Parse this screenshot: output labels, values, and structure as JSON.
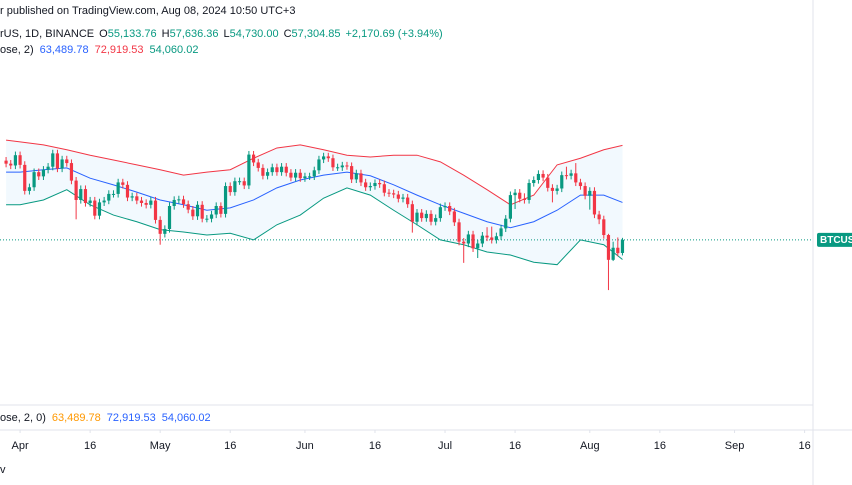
{
  "header": {
    "text": "r published on TradingView.com, Aug 08, 2024 10:50 UTC+3"
  },
  "footer": {
    "text": "v"
  },
  "chart_data": {
    "type": "candlestick",
    "legend": {
      "symbol": "rUS, 1D, BINANCE",
      "ohlc": [
        {
          "label": "O",
          "value": "55,133.76"
        },
        {
          "label": "H",
          "value": "57,636.36"
        },
        {
          "label": "L",
          "value": "54,730.00"
        },
        {
          "label": "C",
          "value": "57,304.85"
        }
      ],
      "change": "+2,170.69 (+3.94%)",
      "value_color": "#089981"
    },
    "indicator_legend": {
      "name": "ose, 2)",
      "values": [
        "63,489.78",
        "72,919.53",
        "54,060.02"
      ],
      "colors": [
        "#2962ff",
        "#f23645",
        "#089981"
      ]
    },
    "lower_indicator_legend": {
      "name": "ose, 2, 0)",
      "values": [
        "63,489.78",
        "72,919.53",
        "54,060.02"
      ],
      "colors": [
        "#ff9800",
        "#2962ff",
        "#2962ff"
      ]
    },
    "price_label": "BTCUSD",
    "up_color": "#089981",
    "down_color": "#f23645",
    "xlim": [
      -4.3,
      169.8
    ],
    "xticks": [
      {
        "value": 0,
        "label": "Apr"
      },
      {
        "value": 15,
        "label": "16"
      },
      {
        "value": 30,
        "label": "May"
      },
      {
        "value": 45,
        "label": "16"
      },
      {
        "value": 61,
        "label": "Jun"
      },
      {
        "value": 76,
        "label": "16"
      },
      {
        "value": 91,
        "label": "Jul"
      },
      {
        "value": 106,
        "label": "16"
      },
      {
        "value": 122,
        "label": "Aug"
      },
      {
        "value": 137,
        "label": "16"
      },
      {
        "value": 153,
        "label": "Sep"
      },
      {
        "value": 168,
        "label": "16"
      }
    ],
    "ylim": [
      30000,
      92000
    ],
    "x": [
      -3,
      -2,
      -1,
      0,
      1,
      2,
      3,
      4,
      5,
      6,
      7,
      8,
      9,
      10,
      11,
      12,
      13,
      14,
      15,
      16,
      17,
      18,
      19,
      20,
      21,
      22,
      23,
      24,
      25,
      26,
      27,
      28,
      29,
      30,
      31,
      32,
      33,
      34,
      35,
      36,
      37,
      38,
      39,
      40,
      41,
      42,
      43,
      44,
      45,
      46,
      47,
      48,
      49,
      50,
      51,
      52,
      53,
      54,
      55,
      56,
      57,
      58,
      59,
      60,
      61,
      62,
      63,
      64,
      65,
      66,
      67,
      68,
      69,
      70,
      71,
      72,
      73,
      74,
      75,
      76,
      77,
      78,
      79,
      80,
      81,
      82,
      83,
      84,
      85,
      86,
      87,
      88,
      89,
      90,
      91,
      92,
      93,
      94,
      95,
      96,
      97,
      98,
      99,
      100,
      101,
      102,
      103,
      104,
      105,
      106,
      107,
      108,
      109,
      110,
      111,
      112,
      113,
      114,
      115,
      116,
      117,
      118,
      119,
      120,
      121,
      122,
      123,
      124,
      125,
      126,
      127,
      128,
      129
    ],
    "open": [
      70400,
      69900,
      69600,
      71300,
      69700,
      65400,
      66000,
      68500,
      67800,
      68900,
      69400,
      71600,
      69100,
      70600,
      70000,
      67100,
      63900,
      65700,
      63400,
      63800,
      61300,
      63500,
      63800,
      64900,
      64900,
      66800,
      66400,
      64300,
      64500,
      63800,
      63400,
      63100,
      63800,
      60600,
      58300,
      59100,
      62900,
      63900,
      64000,
      63200,
      62300,
      61200,
      63100,
      60800,
      60800,
      61500,
      62900,
      61600,
      66200,
      65200,
      67000,
      67000,
      66300,
      71400,
      70100,
      69200,
      67900,
      68500,
      69300,
      68500,
      69400,
      68400,
      67600,
      68400,
      67500,
      67800,
      67800,
      68800,
      70600,
      71100,
      70800,
      69300,
      69300,
      69600,
      69500,
      67300,
      68300,
      66800,
      66000,
      66200,
      66700,
      66500,
      65100,
      65000,
      64800,
      64100,
      64300,
      63200,
      60300,
      61800,
      60900,
      61600,
      60300,
      60900,
      62700,
      62900,
      62000,
      60200,
      57000,
      56700,
      58200,
      55900,
      56700,
      58000,
      57700,
      57300,
      57900,
      59200,
      60800,
      64700,
      65100,
      64100,
      63900,
      66700,
      67200,
      68200,
      67600,
      65900,
      65400,
      65800,
      68000,
      67900,
      68300,
      66800,
      66200,
      64600,
      65400,
      61500,
      60700,
      58100,
      54000,
      56000,
      55133.76
    ],
    "high": [
      71000,
      70500,
      71900,
      71900,
      70300,
      66600,
      69100,
      69100,
      69500,
      70000,
      72200,
      72200,
      71200,
      71200,
      70600,
      67700,
      66300,
      66300,
      64400,
      64400,
      64100,
      64400,
      65500,
      65500,
      67400,
      67400,
      67000,
      65100,
      65100,
      64400,
      64000,
      64400,
      64400,
      61200,
      59700,
      63500,
      64500,
      64600,
      64600,
      63800,
      62900,
      63700,
      63700,
      61400,
      62100,
      63500,
      63500,
      66800,
      66800,
      67600,
      67600,
      67600,
      72000,
      72000,
      70700,
      69800,
      69100,
      69900,
      69900,
      70000,
      70000,
      69000,
      69000,
      69000,
      68400,
      68400,
      69400,
      71200,
      71700,
      71700,
      71400,
      69900,
      70200,
      70200,
      70100,
      68900,
      68900,
      67400,
      66800,
      67300,
      67300,
      67100,
      65700,
      65600,
      65400,
      64900,
      64900,
      63800,
      62400,
      62400,
      62200,
      62200,
      61500,
      63300,
      63500,
      63500,
      62600,
      60800,
      57600,
      58800,
      58800,
      57300,
      58600,
      59400,
      59500,
      58500,
      59800,
      61400,
      65300,
      65700,
      65700,
      65000,
      67300,
      67800,
      68800,
      68800,
      68200,
      66500,
      66400,
      68600,
      69400,
      68900,
      70000,
      67400,
      66800,
      66000,
      66000,
      62100,
      61300,
      58300,
      57000,
      57700,
      57636.36
    ],
    "low": [
      69300,
      69000,
      69000,
      69100,
      64800,
      64800,
      65400,
      67200,
      67200,
      68300,
      68800,
      68500,
      68500,
      69400,
      66500,
      60700,
      63300,
      62800,
      62800,
      60700,
      60700,
      62900,
      63200,
      64300,
      64300,
      65800,
      63700,
      63700,
      63200,
      62800,
      62500,
      62500,
      60000,
      56500,
      57700,
      58500,
      62300,
      63300,
      62600,
      61700,
      60600,
      60600,
      60200,
      60200,
      60200,
      60900,
      61000,
      61000,
      64600,
      64600,
      66400,
      65700,
      65700,
      69500,
      68600,
      67300,
      67300,
      67900,
      67900,
      67900,
      67800,
      67000,
      67000,
      66900,
      66900,
      67200,
      67200,
      68200,
      70000,
      70200,
      68700,
      68700,
      68700,
      68900,
      66700,
      66700,
      66200,
      65400,
      65400,
      65600,
      65900,
      64500,
      64400,
      64200,
      63500,
      63500,
      62600,
      58500,
      59700,
      60300,
      60300,
      59700,
      59700,
      60300,
      62100,
      61400,
      59600,
      56400,
      53500,
      56100,
      55300,
      54300,
      56100,
      57100,
      56700,
      56700,
      57300,
      58600,
      60200,
      62400,
      63500,
      63300,
      63300,
      66100,
      66600,
      67000,
      65300,
      63500,
      64800,
      65200,
      67300,
      67300,
      66200,
      65600,
      64000,
      62300,
      60900,
      59900,
      57500,
      49000,
      53800,
      54600,
      54730
    ],
    "close": [
      69900,
      69600,
      71300,
      69700,
      65400,
      66000,
      68500,
      67800,
      68900,
      69400,
      71600,
      69100,
      70600,
      70000,
      67100,
      63900,
      65700,
      63400,
      63800,
      61300,
      63500,
      63800,
      64900,
      64900,
      66800,
      66400,
      64300,
      64500,
      63800,
      63400,
      63100,
      63800,
      60600,
      58300,
      59100,
      62900,
      63900,
      64000,
      63200,
      62300,
      61200,
      63100,
      60800,
      60800,
      61500,
      62900,
      61600,
      66200,
      65200,
      67000,
      67000,
      66300,
      71400,
      70100,
      69200,
      67900,
      68500,
      69300,
      68500,
      69400,
      68400,
      67600,
      68400,
      67500,
      67800,
      67800,
      68800,
      70600,
      71100,
      70800,
      69300,
      69300,
      69600,
      69500,
      67300,
      68300,
      66800,
      66000,
      66200,
      66700,
      66500,
      65100,
      65000,
      64800,
      64100,
      64300,
      63200,
      60300,
      61800,
      60900,
      61600,
      60300,
      60900,
      62700,
      62900,
      62000,
      60200,
      57000,
      56700,
      58200,
      55900,
      56700,
      58000,
      57700,
      57300,
      57900,
      59200,
      60800,
      64700,
      65100,
      64100,
      63900,
      66700,
      67200,
      68200,
      67600,
      65900,
      65400,
      65800,
      68000,
      67900,
      68300,
      66800,
      66200,
      64600,
      65400,
      61500,
      60700,
      58100,
      54000,
      56000,
      55100,
      57304.85
    ],
    "bands": {
      "fill": "rgba(33,150,243,0.06)",
      "x": [
        -3,
        0,
        5,
        10,
        15,
        20,
        25,
        30,
        35,
        40,
        45,
        50,
        55,
        60,
        65,
        70,
        75,
        80,
        85,
        90,
        95,
        100,
        105,
        110,
        115,
        120,
        125,
        129
      ],
      "series": [
        {
          "color": "#2962ff",
          "values": [
            68500,
            68500,
            68900,
            69200,
            67500,
            66400,
            65200,
            63900,
            63100,
            62200,
            62600,
            63900,
            65900,
            67200,
            68000,
            68500,
            67900,
            66400,
            64700,
            63100,
            61700,
            60300,
            59300,
            60300,
            62200,
            64700,
            64700,
            63489.78
          ]
        },
        {
          "color": "#f23645",
          "values": [
            73800,
            73500,
            73000,
            72200,
            71300,
            70500,
            69700,
            68900,
            68000,
            68500,
            68900,
            70800,
            72500,
            73000,
            72200,
            71300,
            71000,
            71300,
            71300,
            70200,
            68000,
            65600,
            63100,
            64700,
            69700,
            70800,
            72200,
            72919.53
          ]
        },
        {
          "color": "#089981",
          "values": [
            63100,
            63100,
            63900,
            65600,
            63100,
            61400,
            60300,
            59000,
            58600,
            58100,
            58400,
            57300,
            59800,
            61400,
            64200,
            65900,
            64700,
            62200,
            59800,
            57300,
            56500,
            55300,
            54800,
            53600,
            53200,
            57300,
            56500,
            54060.02
          ]
        }
      ]
    }
  }
}
